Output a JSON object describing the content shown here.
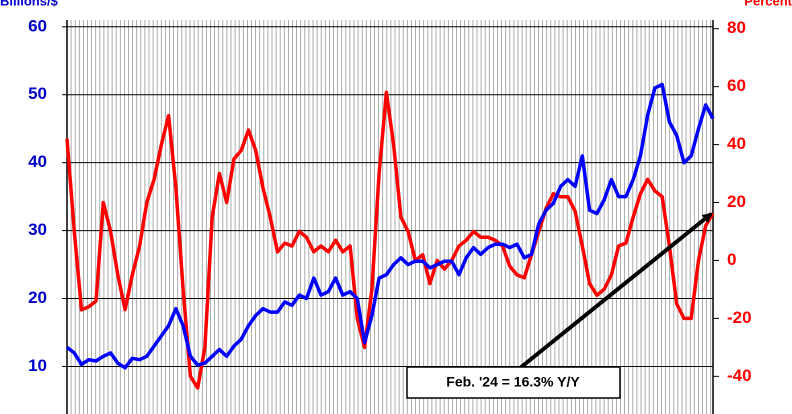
{
  "chart_data": {
    "type": "line",
    "y_label": "Billions/$",
    "y2_label": "Percent",
    "annotation": "Feb. '24 = 16.3% Y/Y",
    "ylim": [
      3,
      61
    ],
    "yticks": [
      10,
      20,
      30,
      40,
      50,
      60
    ],
    "y2lim": [
      -53,
      83
    ],
    "y2ticks": [
      -40,
      -20,
      0,
      20,
      40,
      60,
      80
    ],
    "grid": true,
    "series": [
      {
        "color": "#0000ff",
        "axis": "y",
        "values": [
          12.8,
          12,
          10.3,
          11,
          10.8,
          11.5,
          12,
          10.5,
          9.8,
          11.2,
          11,
          11.5,
          13,
          14.5,
          16,
          18.5,
          16,
          11.5,
          10.2,
          10.5,
          11.5,
          12.5,
          11.5,
          13,
          14,
          16,
          17.5,
          18.5,
          18,
          18,
          19.5,
          19,
          20.5,
          20,
          23,
          20.5,
          21,
          23,
          20.5,
          21,
          20,
          13.5,
          17.5,
          23,
          23.5,
          25,
          26,
          25,
          25.5,
          25.5,
          24.5,
          25,
          25.5,
          25.5,
          23.5,
          26,
          27.5,
          26.5,
          27.5,
          28,
          28,
          27.5,
          28,
          26,
          26.5,
          31,
          33,
          34,
          36.5,
          37.5,
          36.5,
          41,
          33,
          32.5,
          34.5,
          37.5,
          35,
          35,
          37.5,
          41,
          47,
          51,
          51.5,
          46,
          44,
          40,
          41,
          45,
          48.5,
          46.5
        ]
      },
      {
        "color": "#ff0000",
        "axis": "y2",
        "values": [
          42,
          10,
          -17,
          -16,
          -14,
          20,
          10,
          -5,
          -17,
          -5,
          5,
          20,
          28,
          40,
          50,
          25,
          -10,
          -40,
          -44,
          -30,
          15,
          30,
          20,
          35,
          38,
          45,
          38,
          25,
          15,
          3,
          6,
          5,
          10,
          8,
          3,
          5,
          3,
          7,
          3,
          5,
          -20,
          -30,
          -10,
          30,
          58,
          40,
          15,
          10,
          0,
          2,
          -8,
          0,
          -3,
          0,
          5,
          7,
          10,
          8,
          8,
          7,
          5,
          -2,
          -5,
          -6,
          2,
          10,
          18,
          23,
          22,
          22,
          17,
          5,
          -8,
          -12,
          -10,
          -5,
          5,
          6,
          15,
          23,
          28,
          24,
          22,
          5,
          -15,
          -20,
          -20,
          0,
          12,
          16.3
        ]
      }
    ]
  }
}
